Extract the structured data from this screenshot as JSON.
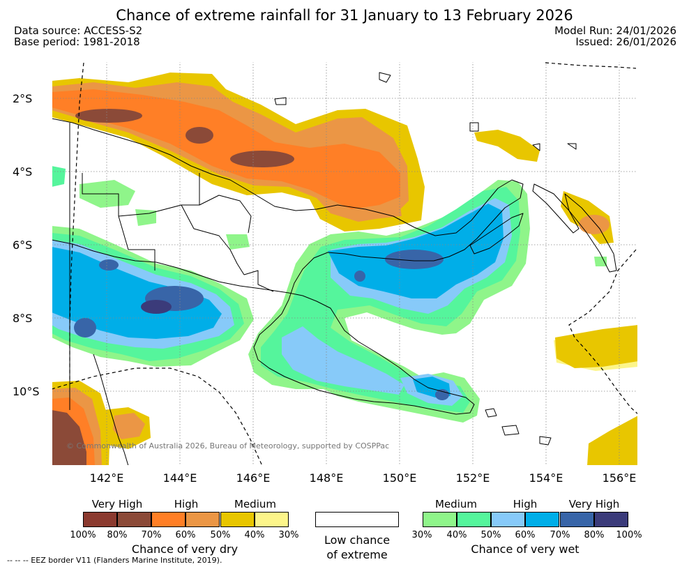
{
  "title": "Chance of extreme rainfall for 31 January to 13 February 2026",
  "info": {
    "data_source": "Data source: ACCESS-S2",
    "base_period": "Base period: 1981-2018",
    "model_run": "Model Run: 24/01/2026",
    "issued": "Issued: 26/01/2026"
  },
  "map": {
    "lat_labels": [
      "2°S",
      "4°S",
      "6°S",
      "8°S",
      "10°S"
    ],
    "lon_labels": [
      "142°E",
      "144°E",
      "146°E",
      "148°E",
      "150°E",
      "152°E",
      "154°E",
      "156°E"
    ],
    "copyright": "© Commonwealth of Australia 2026, Bureau of Meteorology, supported by COSPPac"
  },
  "legend": {
    "dry": {
      "tiers": [
        "Very High",
        "High",
        "Medium"
      ],
      "colors": [
        "#8b3a2f",
        "#8b4a38",
        "#ff7f26",
        "#eb9645",
        "#e8c600",
        "#fcf58a"
      ],
      "ticks": [
        "100%",
        "80%",
        "70%",
        "60%",
        "50%",
        "40%",
        "30%"
      ],
      "caption": "Chance of very dry"
    },
    "neutral": {
      "line1": "Low chance",
      "line2": "of extreme"
    },
    "wet": {
      "tiers": [
        "Medium",
        "High",
        "Very High"
      ],
      "colors": [
        "#8ff58a",
        "#55f59c",
        "#87caf9",
        "#00aee8",
        "#3865a8",
        "#3b3b7a"
      ],
      "ticks": [
        "30%",
        "40%",
        "50%",
        "60%",
        "70%",
        "80%",
        "100%"
      ],
      "caption": "Chance of very wet"
    }
  },
  "footnote": "--  --  -- EEZ border V11 (Flanders Marine Institute, 2019)."
}
